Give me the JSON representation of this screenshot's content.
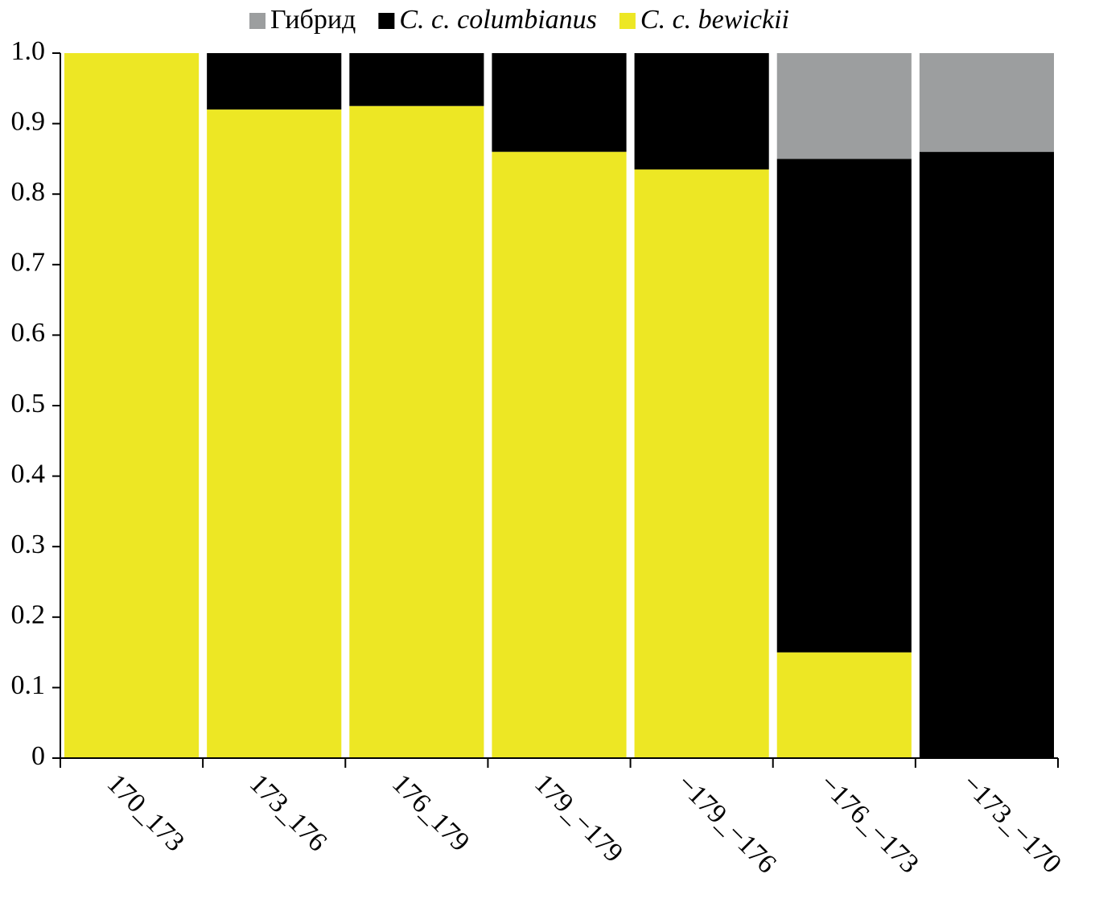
{
  "chart_data": {
    "type": "stacked_bar",
    "categories": [
      "170_173",
      "173_176",
      "176_179",
      "179_−179",
      "−179_−176",
      "−176_−173",
      "−173_−170"
    ],
    "series": [
      {
        "name": "Гибрид",
        "color": "#9c9e9f",
        "values": [
          0,
          0,
          0,
          0,
          0,
          0.15,
          0.14
        ]
      },
      {
        "name": "C. c. columbianus",
        "color": "#000000",
        "values": [
          0,
          0.08,
          0.075,
          0.14,
          0.165,
          0.7,
          0.86
        ]
      },
      {
        "name": "C. c. bewickii",
        "color": "#ede724",
        "values": [
          1.0,
          0.92,
          0.925,
          0.86,
          0.835,
          0.15,
          0
        ]
      }
    ],
    "ylim": [
      0,
      1
    ],
    "yticks": [
      0,
      0.1,
      0.2,
      0.3,
      0.4,
      0.5,
      0.6,
      0.7,
      0.8,
      0.9,
      {
        "value": 1,
        "label": "1.0"
      }
    ]
  }
}
